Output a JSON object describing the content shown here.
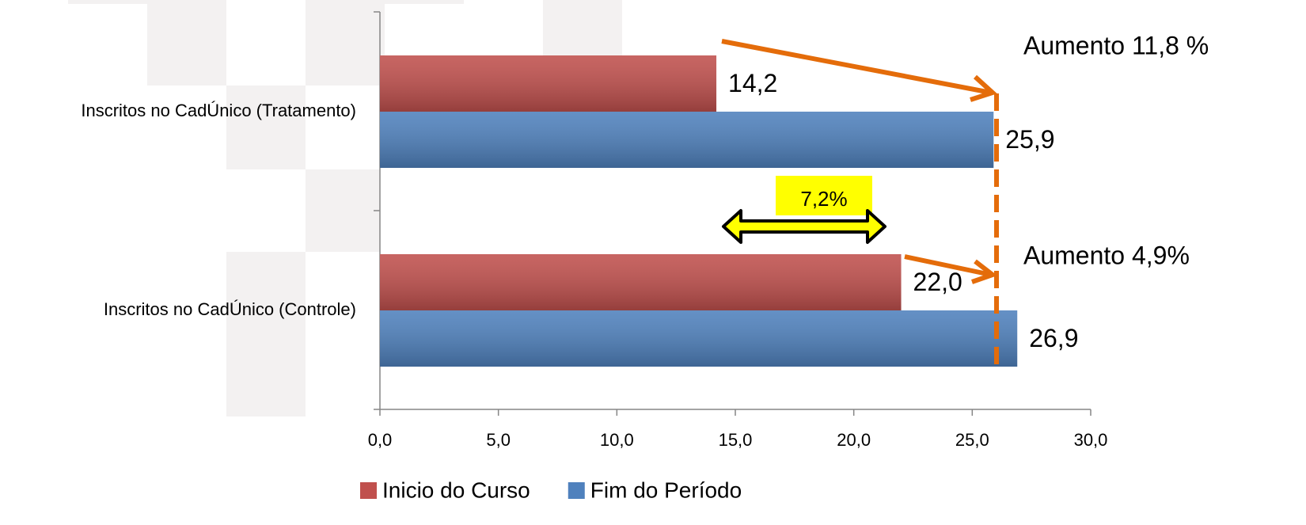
{
  "chart_data": {
    "type": "hbar",
    "categories": [
      "Inscritos no CadÚnico (Tratamento)",
      "Inscritos no CadÚnico (Controle)"
    ],
    "series": [
      {
        "name": "Inicio do Curso",
        "color": "#c0504d",
        "values": [
          14.2,
          22.0
        ],
        "value_labels": [
          "14,2",
          "22,0"
        ]
      },
      {
        "name": "Fim do Período",
        "color": "#4f81bd",
        "values": [
          25.9,
          26.9
        ],
        "value_labels": [
          "25,9",
          "26,9"
        ]
      }
    ],
    "xlim": [
      0,
      30
    ],
    "xticks": [
      {
        "value": 0,
        "label": "0,0"
      },
      {
        "value": 5,
        "label": "5,0"
      },
      {
        "value": 10,
        "label": "10,0"
      },
      {
        "value": 15,
        "label": "15,0"
      },
      {
        "value": 20,
        "label": "20,0"
      },
      {
        "value": 25,
        "label": "25,0"
      },
      {
        "value": 30,
        "label": "30,0"
      }
    ],
    "legend": "bottom",
    "annotations": [
      "Aumento 11,8 %",
      "Aumento 4,9%",
      "7,2%"
    ]
  }
}
